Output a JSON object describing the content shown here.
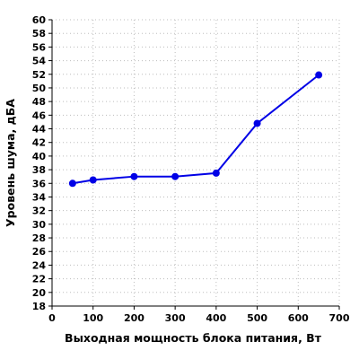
{
  "chart_data": {
    "type": "line",
    "title": "",
    "xlabel": "Выходная мощность блока питания, Вт",
    "ylabel": "Уровень шума, дБА",
    "xlim": [
      0,
      700
    ],
    "ylim": [
      18,
      60
    ],
    "x_ticks": [
      0,
      100,
      200,
      300,
      400,
      500,
      600,
      700
    ],
    "y_ticks": [
      18,
      20,
      22,
      24,
      26,
      28,
      30,
      32,
      34,
      36,
      38,
      40,
      42,
      44,
      46,
      48,
      50,
      52,
      54,
      56,
      58,
      60
    ],
    "grid": true,
    "legend": "none",
    "series": [
      {
        "color": "#0000e6",
        "x": [
          50,
          100,
          200,
          300,
          400,
          500,
          650
        ],
        "y": [
          36.0,
          36.5,
          37.0,
          37.0,
          37.5,
          44.8,
          51.9
        ]
      }
    ]
  }
}
